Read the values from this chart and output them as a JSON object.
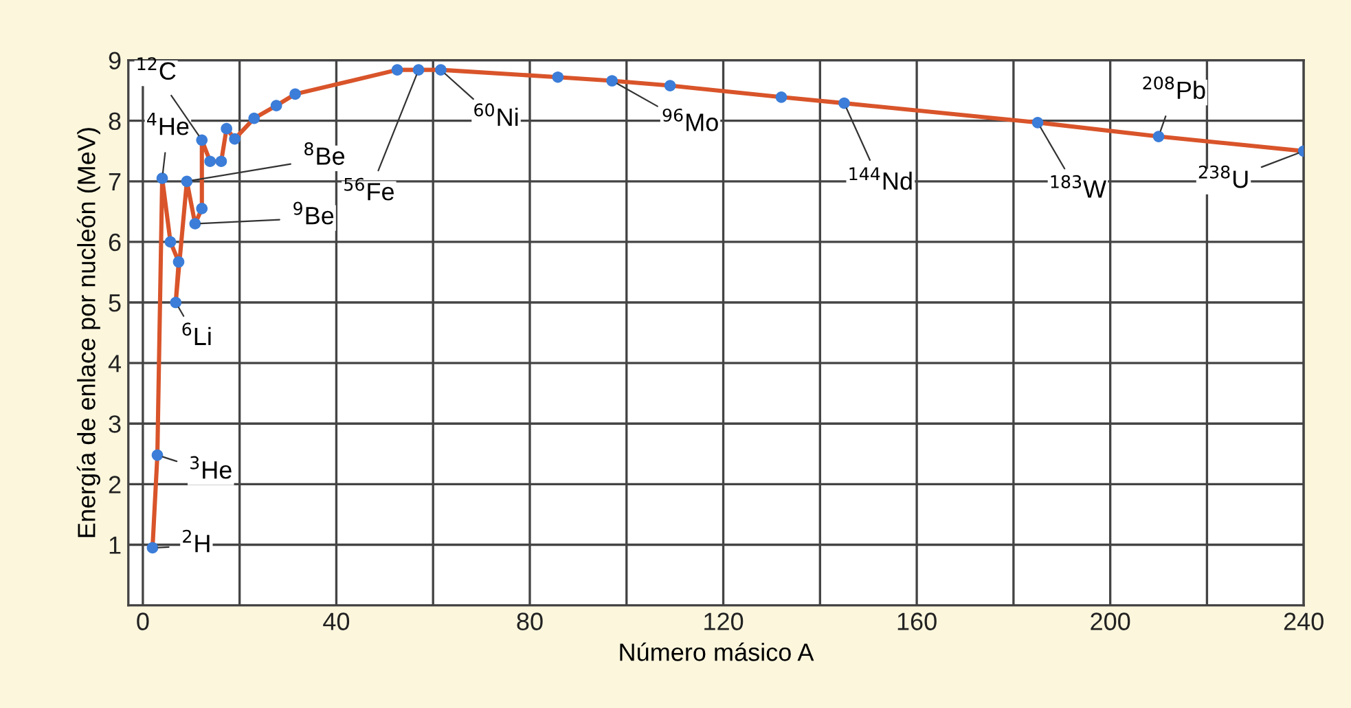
{
  "chart_data": {
    "type": "line",
    "xlabel": "Número másico A",
    "ylabel": "Energía de enlace por nucleón (MeV)",
    "series": [
      {
        "color": "#d9542a",
        "colors": [
          "#3b7dd8",
          "#3b7dd8",
          "#3b7dd8",
          "#3b7dd8",
          "#3b7dd8",
          "#3b7dd8",
          "#3b7dd8",
          "#3b7dd8",
          "#3b7dd8",
          "#3b7dd8",
          "#3b7dd8",
          "#3b7dd8",
          "#3b7dd8",
          "#3b7dd8",
          "#3b7dd8",
          "#3b7dd8",
          "#3b7dd8",
          "#3b7dd8",
          "#3b7dd8",
          "#3b7dd8",
          "#3b7dd8",
          "#3b7dd8",
          "#3b7dd8",
          "#3b7dd8",
          "#3b7dd8",
          "#3b7dd8",
          "#3b7dd8",
          "#3b7dd8"
        ],
        "x": [
          2,
          3,
          4,
          5.7,
          7.4,
          6.8,
          9.1,
          10.8,
          12.2,
          12.2,
          13.9,
          16.2,
          17.3,
          19,
          23,
          27.6,
          31.5,
          52.6,
          57,
          61.6,
          85.8,
          97,
          109,
          132,
          145,
          185,
          210,
          240
        ],
        "values": [
          0.95,
          2.48,
          7.05,
          6.0,
          5.67,
          5.0,
          7.0,
          6.3,
          6.55,
          7.68,
          7.33,
          7.33,
          7.87,
          7.7,
          8.04,
          8.25,
          8.44,
          8.84,
          8.84,
          8.84,
          8.72,
          8.66,
          8.58,
          8.39,
          8.29,
          7.97,
          7.74,
          7.5
        ]
      }
    ],
    "annotations": [
      {
        "text": "$^{2}$H",
        "x": 2,
        "y": 0.95
      },
      {
        "text": "$^{3}$He",
        "x": 3,
        "y": 2.48
      },
      {
        "text": "$^{4}$He",
        "x": 4,
        "y": 7.05
      },
      {
        "text": "$^{6}$Li",
        "x": 6.8,
        "y": 5.0
      },
      {
        "text": "$^{8}$Be",
        "x": 9.1,
        "y": 7.0
      },
      {
        "text": "$^{9}$Be",
        "x": 10.8,
        "y": 6.3
      },
      {
        "text": "$^{12}$C",
        "x": 12.2,
        "y": 7.68
      },
      {
        "text": "$^{56}$Fe",
        "x": 57,
        "y": 8.84
      },
      {
        "text": "$^{60}$Ni",
        "x": 61.6,
        "y": 8.84
      },
      {
        "text": "$^{96}$Mo",
        "x": 97,
        "y": 8.66
      },
      {
        "text": "$^{144}$Nd",
        "x": 145,
        "y": 8.29
      },
      {
        "text": "$^{183}$W",
        "x": 185,
        "y": 7.97
      },
      {
        "text": "$^{208}$Pb",
        "x": 210,
        "y": 7.74
      },
      {
        "text": "$^{238}$U",
        "x": 240,
        "y": 7.5
      }
    ],
    "xlim": [
      -3,
      240
    ],
    "ylim": [
      0,
      9
    ],
    "xticks": [
      0,
      {
        "value": 20,
        "label": null
      },
      40,
      {
        "value": 60,
        "label": null
      },
      80,
      {
        "value": 100,
        "label": null
      },
      120,
      {
        "value": 140,
        "label": null
      },
      160,
      {
        "value": 180,
        "label": null
      },
      200,
      {
        "value": 220,
        "label": null
      },
      240
    ],
    "yticks": [
      {
        "value": 0,
        "label": null
      },
      1,
      2,
      3,
      4,
      5,
      6,
      7,
      8,
      9
    ],
    "grid": true,
    "marker": "circle",
    "line_style": "solid"
  }
}
